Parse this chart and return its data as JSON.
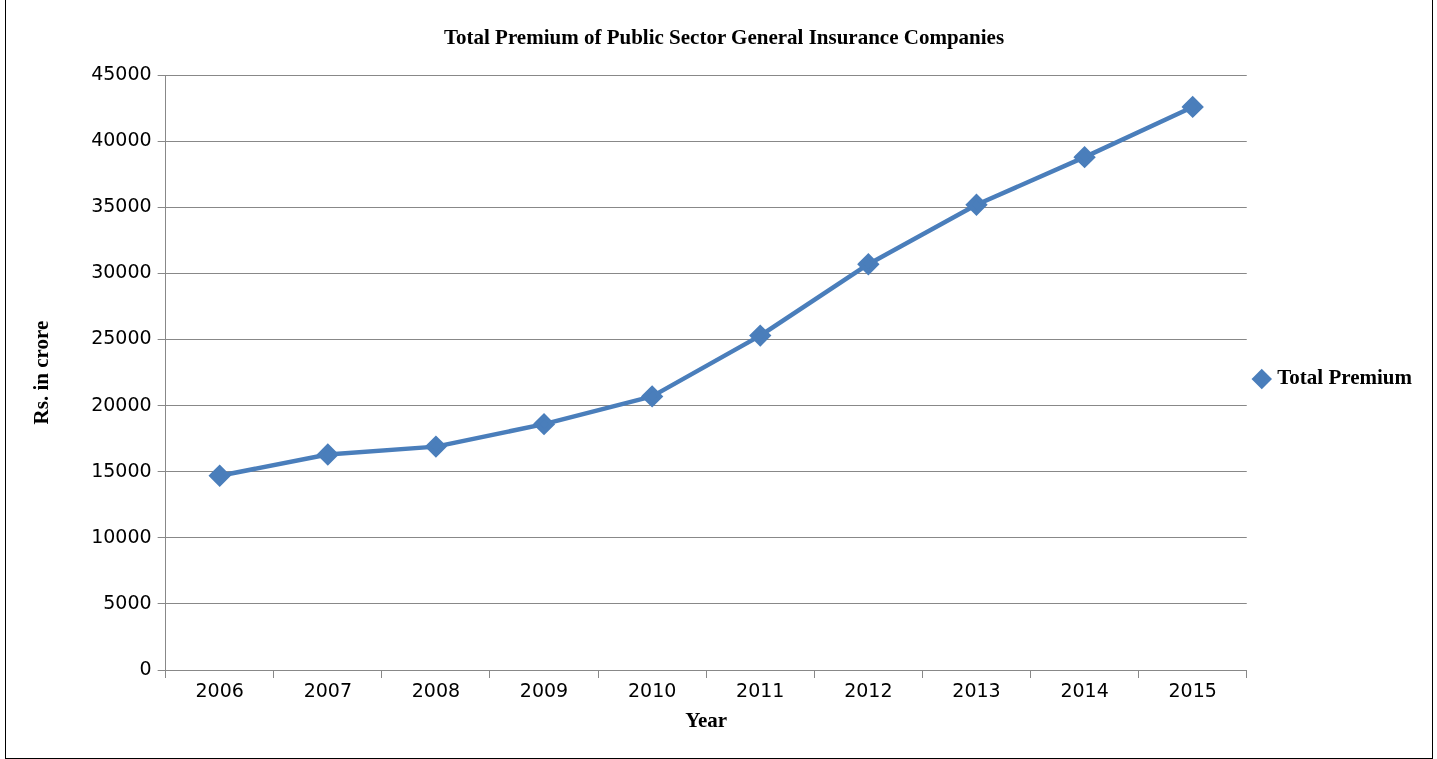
{
  "chart_data": {
    "type": "line",
    "title": "Total Premium of Public Sector General Insurance Companies",
    "xlabel": "Year",
    "ylabel": "Rs. in crore",
    "categories": [
      "2006",
      "2007",
      "2008",
      "2009",
      "2010",
      "2011",
      "2012",
      "2013",
      "2014",
      "2015"
    ],
    "series": [
      {
        "name": "Total Premium",
        "color": "#4a7ebb",
        "values": [
          14700,
          16300,
          16900,
          18600,
          20700,
          25300,
          30700,
          35200,
          38800,
          42600
        ]
      }
    ],
    "ylim": [
      0,
      45000
    ],
    "yticks": [
      0,
      5000,
      10000,
      15000,
      20000,
      25000,
      30000,
      35000,
      40000,
      45000
    ],
    "grid": "y",
    "legend": "right",
    "marker": "diamond",
    "line_style": "solid"
  }
}
